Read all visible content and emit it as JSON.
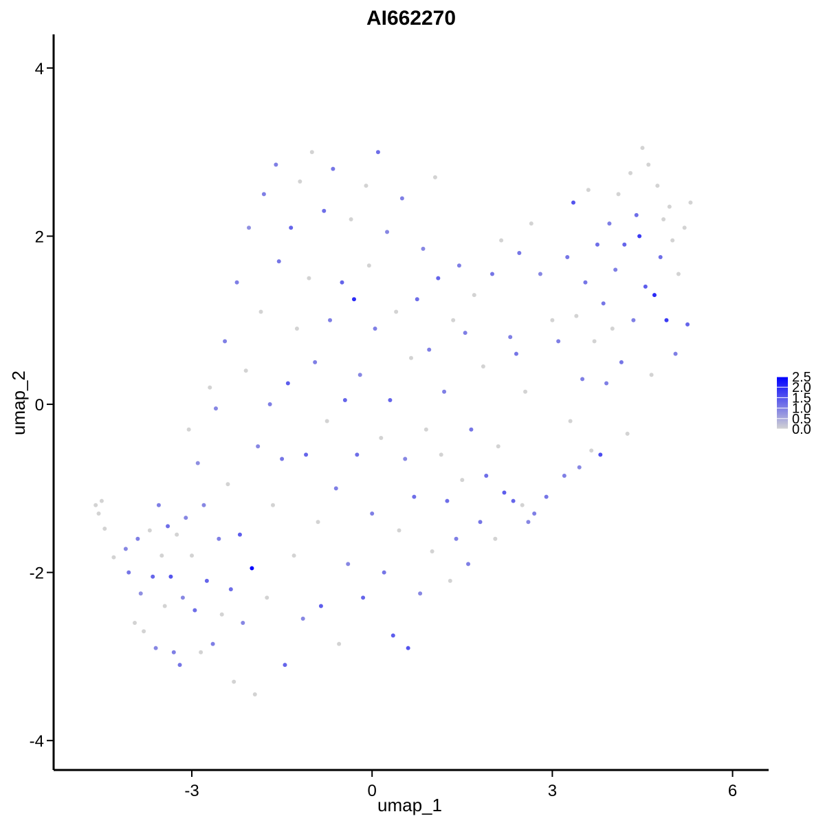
{
  "chart_data": {
    "type": "scatter",
    "title": "AI662270",
    "xlabel": "umap_1",
    "ylabel": "umap_2",
    "xlim": [
      -5.3,
      6.6
    ],
    "ylim": [
      -4.35,
      4.4
    ],
    "xticks": [
      -3,
      0,
      3,
      6
    ],
    "xtick_labels": [
      "-3",
      "0",
      "3",
      "6"
    ],
    "yticks": [
      -4,
      -2,
      0,
      2,
      4
    ],
    "ytick_labels": [
      "-4",
      "-2",
      "0",
      "2",
      "4"
    ],
    "grid": false,
    "legend_placement": "right",
    "colorbar": {
      "min": 0.0,
      "max": 2.5,
      "ticks": [
        0.0,
        0.5,
        1.0,
        1.5,
        2.0,
        2.5
      ],
      "tick_labels": [
        "0.0",
        "0.5",
        "1.0",
        "1.5",
        "2.0",
        "2.5"
      ],
      "color_low": "#d3d3d3",
      "color_high": "#0000ff"
    },
    "points": [
      {
        "x": -4.6,
        "y": -1.2,
        "v": 0.0
      },
      {
        "x": -4.55,
        "y": -1.3,
        "v": 0.0
      },
      {
        "x": -4.5,
        "y": -1.15,
        "v": 0.0
      },
      {
        "x": -4.45,
        "y": -1.48,
        "v": 0.0
      },
      {
        "x": -4.3,
        "y": -1.82,
        "v": 0.0
      },
      {
        "x": -4.1,
        "y": -1.72,
        "v": 0.9
      },
      {
        "x": -4.05,
        "y": -2.0,
        "v": 1.1
      },
      {
        "x": -3.95,
        "y": -2.6,
        "v": 0.0
      },
      {
        "x": -3.9,
        "y": -1.6,
        "v": 1.0
      },
      {
        "x": -3.85,
        "y": -2.25,
        "v": 0.8
      },
      {
        "x": -3.8,
        "y": -2.7,
        "v": 0.0
      },
      {
        "x": -3.7,
        "y": -1.5,
        "v": 0.0
      },
      {
        "x": -3.65,
        "y": -2.05,
        "v": 1.3
      },
      {
        "x": -3.6,
        "y": -2.9,
        "v": 0.9
      },
      {
        "x": -3.55,
        "y": -1.2,
        "v": 1.0
      },
      {
        "x": -3.5,
        "y": -1.8,
        "v": 0.0
      },
      {
        "x": -3.45,
        "y": -2.4,
        "v": 0.0
      },
      {
        "x": -3.4,
        "y": -1.45,
        "v": 1.2
      },
      {
        "x": -3.35,
        "y": -2.05,
        "v": 1.5
      },
      {
        "x": -3.3,
        "y": -2.95,
        "v": 1.0
      },
      {
        "x": -3.25,
        "y": -1.55,
        "v": 0.0
      },
      {
        "x": -3.2,
        "y": -3.1,
        "v": 1.1
      },
      {
        "x": -3.15,
        "y": -2.3,
        "v": 0.9
      },
      {
        "x": -3.1,
        "y": -1.35,
        "v": 0.9
      },
      {
        "x": -3.05,
        "y": -0.3,
        "v": 0.0
      },
      {
        "x": -3.0,
        "y": -1.8,
        "v": 0.0
      },
      {
        "x": -2.95,
        "y": -2.45,
        "v": 1.2
      },
      {
        "x": -2.9,
        "y": -0.7,
        "v": 0.8
      },
      {
        "x": -2.85,
        "y": -2.95,
        "v": 0.0
      },
      {
        "x": -2.8,
        "y": -1.2,
        "v": 0.9
      },
      {
        "x": -2.75,
        "y": -2.1,
        "v": 1.3
      },
      {
        "x": -2.7,
        "y": 0.2,
        "v": 0.0
      },
      {
        "x": -2.65,
        "y": -2.85,
        "v": 1.0
      },
      {
        "x": -2.6,
        "y": -0.05,
        "v": 0.9
      },
      {
        "x": -2.55,
        "y": -1.6,
        "v": 1.0
      },
      {
        "x": -2.5,
        "y": -2.5,
        "v": 0.0
      },
      {
        "x": -2.45,
        "y": 0.75,
        "v": 1.0
      },
      {
        "x": -2.4,
        "y": -0.95,
        "v": 0.0
      },
      {
        "x": -2.35,
        "y": -2.2,
        "v": 1.2
      },
      {
        "x": -2.3,
        "y": -3.3,
        "v": 0.0
      },
      {
        "x": -2.25,
        "y": 1.45,
        "v": 1.0
      },
      {
        "x": -2.2,
        "y": -1.55,
        "v": 1.4
      },
      {
        "x": -2.15,
        "y": -2.6,
        "v": 0.9
      },
      {
        "x": -2.1,
        "y": 0.4,
        "v": 0.0
      },
      {
        "x": -2.05,
        "y": 2.1,
        "v": 0.8
      },
      {
        "x": -2.0,
        "y": -1.95,
        "v": 2.5
      },
      {
        "x": -1.95,
        "y": -3.45,
        "v": 0.0
      },
      {
        "x": -1.9,
        "y": -0.5,
        "v": 0.9
      },
      {
        "x": -1.85,
        "y": 1.1,
        "v": 0.0
      },
      {
        "x": -1.8,
        "y": 2.5,
        "v": 1.0
      },
      {
        "x": -1.75,
        "y": -2.3,
        "v": 0.0
      },
      {
        "x": -1.7,
        "y": 0.0,
        "v": 1.0
      },
      {
        "x": -1.65,
        "y": -1.2,
        "v": 0.0
      },
      {
        "x": -1.6,
        "y": 2.85,
        "v": 1.0
      },
      {
        "x": -1.55,
        "y": 1.7,
        "v": 1.1
      },
      {
        "x": -1.5,
        "y": -0.65,
        "v": 1.1
      },
      {
        "x": -1.45,
        "y": -3.1,
        "v": 1.3
      },
      {
        "x": -1.4,
        "y": 0.25,
        "v": 1.4
      },
      {
        "x": -1.35,
        "y": 2.1,
        "v": 1.3
      },
      {
        "x": -1.3,
        "y": -1.8,
        "v": 0.0
      },
      {
        "x": -1.25,
        "y": 0.9,
        "v": 0.0
      },
      {
        "x": -1.2,
        "y": 2.65,
        "v": 0.0
      },
      {
        "x": -1.15,
        "y": -2.55,
        "v": 0.9
      },
      {
        "x": -1.1,
        "y": -0.6,
        "v": 1.3
      },
      {
        "x": -1.05,
        "y": 1.5,
        "v": 0.0
      },
      {
        "x": -1.0,
        "y": 3.0,
        "v": 0.0
      },
      {
        "x": -0.95,
        "y": 0.5,
        "v": 1.0
      },
      {
        "x": -0.9,
        "y": -1.4,
        "v": 0.0
      },
      {
        "x": -0.85,
        "y": -2.4,
        "v": 1.4
      },
      {
        "x": -0.8,
        "y": 2.3,
        "v": 1.2
      },
      {
        "x": -0.75,
        "y": -0.2,
        "v": 0.0
      },
      {
        "x": -0.7,
        "y": 1.0,
        "v": 1.0
      },
      {
        "x": -0.65,
        "y": 2.8,
        "v": 1.1
      },
      {
        "x": -0.6,
        "y": -1.0,
        "v": 1.0
      },
      {
        "x": -0.55,
        "y": -2.85,
        "v": 0.0
      },
      {
        "x": -0.5,
        "y": 1.45,
        "v": 1.3
      },
      {
        "x": -0.45,
        "y": 0.05,
        "v": 1.3
      },
      {
        "x": -0.4,
        "y": -1.9,
        "v": 0.9
      },
      {
        "x": -0.35,
        "y": 2.2,
        "v": 0.0
      },
      {
        "x": -0.3,
        "y": 1.25,
        "v": 2.0
      },
      {
        "x": -0.25,
        "y": -0.6,
        "v": 1.2
      },
      {
        "x": -0.2,
        "y": 0.35,
        "v": 0.9
      },
      {
        "x": -0.15,
        "y": -2.3,
        "v": 1.3
      },
      {
        "x": -0.1,
        "y": 2.6,
        "v": 0.0
      },
      {
        "x": -0.05,
        "y": 1.65,
        "v": 0.0
      },
      {
        "x": 0.0,
        "y": -1.3,
        "v": 1.0
      },
      {
        "x": 0.05,
        "y": 0.9,
        "v": 1.0
      },
      {
        "x": 0.1,
        "y": 3.0,
        "v": 1.2
      },
      {
        "x": 0.15,
        "y": -0.4,
        "v": 0.0
      },
      {
        "x": 0.2,
        "y": -2.0,
        "v": 1.1
      },
      {
        "x": 0.25,
        "y": 2.05,
        "v": 0.9
      },
      {
        "x": 0.3,
        "y": 0.05,
        "v": 1.3
      },
      {
        "x": 0.35,
        "y": -2.75,
        "v": 1.4
      },
      {
        "x": 0.4,
        "y": 1.1,
        "v": 0.0
      },
      {
        "x": 0.45,
        "y": -1.5,
        "v": 0.0
      },
      {
        "x": 0.5,
        "y": 2.45,
        "v": 1.0
      },
      {
        "x": 0.55,
        "y": -0.65,
        "v": 0.9
      },
      {
        "x": 0.6,
        "y": -2.9,
        "v": 1.5
      },
      {
        "x": 0.65,
        "y": 0.55,
        "v": 0.0
      },
      {
        "x": 0.7,
        "y": -1.1,
        "v": 1.2
      },
      {
        "x": 0.75,
        "y": 1.25,
        "v": 1.2
      },
      {
        "x": 0.8,
        "y": -2.25,
        "v": 0.9
      },
      {
        "x": 0.85,
        "y": 1.85,
        "v": 0.9
      },
      {
        "x": 0.9,
        "y": -0.3,
        "v": 0.0
      },
      {
        "x": 0.95,
        "y": 0.65,
        "v": 1.0
      },
      {
        "x": 1.0,
        "y": -1.75,
        "v": 0.0
      },
      {
        "x": 1.05,
        "y": 2.7,
        "v": 0.0
      },
      {
        "x": 1.1,
        "y": 1.5,
        "v": 1.3
      },
      {
        "x": 1.15,
        "y": -0.6,
        "v": 0.0
      },
      {
        "x": 1.2,
        "y": 0.15,
        "v": 1.0
      },
      {
        "x": 1.25,
        "y": -1.15,
        "v": 1.2
      },
      {
        "x": 1.3,
        "y": -2.1,
        "v": 0.0
      },
      {
        "x": 1.35,
        "y": 1.0,
        "v": 0.0
      },
      {
        "x": 1.4,
        "y": -1.6,
        "v": 1.0
      },
      {
        "x": 1.45,
        "y": 1.65,
        "v": 1.0
      },
      {
        "x": 1.5,
        "y": -0.9,
        "v": 0.0
      },
      {
        "x": 1.55,
        "y": 0.85,
        "v": 1.0
      },
      {
        "x": 1.6,
        "y": -1.9,
        "v": 1.0
      },
      {
        "x": 1.65,
        "y": -0.3,
        "v": 1.1
      },
      {
        "x": 1.7,
        "y": 1.3,
        "v": 0.0
      },
      {
        "x": 1.8,
        "y": -1.4,
        "v": 1.1
      },
      {
        "x": 1.85,
        "y": 0.45,
        "v": 0.0
      },
      {
        "x": 1.9,
        "y": -0.85,
        "v": 1.2
      },
      {
        "x": 2.0,
        "y": 1.55,
        "v": 1.1
      },
      {
        "x": 2.05,
        "y": -1.6,
        "v": 0.0
      },
      {
        "x": 2.1,
        "y": -0.5,
        "v": 0.0
      },
      {
        "x": 2.15,
        "y": 1.95,
        "v": 0.0
      },
      {
        "x": 2.2,
        "y": -1.05,
        "v": 1.4
      },
      {
        "x": 2.3,
        "y": 0.8,
        "v": 1.0
      },
      {
        "x": 2.35,
        "y": -1.15,
        "v": 1.3
      },
      {
        "x": 2.4,
        "y": 0.6,
        "v": 1.1
      },
      {
        "x": 2.45,
        "y": 1.8,
        "v": 1.1
      },
      {
        "x": 2.5,
        "y": -1.2,
        "v": 0.0
      },
      {
        "x": 2.55,
        "y": 0.15,
        "v": 0.0
      },
      {
        "x": 2.6,
        "y": -1.4,
        "v": 0.9
      },
      {
        "x": 2.65,
        "y": 2.15,
        "v": 0.0
      },
      {
        "x": 2.7,
        "y": -1.3,
        "v": 1.0
      },
      {
        "x": 2.8,
        "y": 1.55,
        "v": 0.9
      },
      {
        "x": 2.9,
        "y": -1.1,
        "v": 1.1
      },
      {
        "x": 3.0,
        "y": 1.0,
        "v": 0.0
      },
      {
        "x": 3.1,
        "y": 0.75,
        "v": 1.0
      },
      {
        "x": 3.2,
        "y": -0.85,
        "v": 1.0
      },
      {
        "x": 3.25,
        "y": 1.75,
        "v": 1.1
      },
      {
        "x": 3.3,
        "y": -0.2,
        "v": 0.0
      },
      {
        "x": 3.35,
        "y": 2.4,
        "v": 1.5
      },
      {
        "x": 3.4,
        "y": 1.05,
        "v": 0.0
      },
      {
        "x": 3.45,
        "y": -0.75,
        "v": 0.9
      },
      {
        "x": 3.5,
        "y": 0.3,
        "v": 1.0
      },
      {
        "x": 3.55,
        "y": 1.45,
        "v": 1.1
      },
      {
        "x": 3.6,
        "y": 2.55,
        "v": 0.0
      },
      {
        "x": 3.65,
        "y": -0.55,
        "v": 0.0
      },
      {
        "x": 3.7,
        "y": 0.75,
        "v": 0.0
      },
      {
        "x": 3.75,
        "y": 1.9,
        "v": 1.2
      },
      {
        "x": 3.8,
        "y": -0.6,
        "v": 1.6
      },
      {
        "x": 3.85,
        "y": 1.2,
        "v": 1.1
      },
      {
        "x": 3.9,
        "y": 0.25,
        "v": 1.0
      },
      {
        "x": 3.95,
        "y": 2.15,
        "v": 1.0
      },
      {
        "x": 4.0,
        "y": 0.9,
        "v": 0.0
      },
      {
        "x": 4.05,
        "y": 1.6,
        "v": 1.0
      },
      {
        "x": 4.1,
        "y": 2.5,
        "v": 0.0
      },
      {
        "x": 4.15,
        "y": 0.5,
        "v": 1.1
      },
      {
        "x": 4.2,
        "y": 1.9,
        "v": 1.3
      },
      {
        "x": 4.25,
        "y": -0.35,
        "v": 0.0
      },
      {
        "x": 4.3,
        "y": 2.75,
        "v": 0.0
      },
      {
        "x": 4.35,
        "y": 1.0,
        "v": 1.0
      },
      {
        "x": 4.4,
        "y": 2.25,
        "v": 1.2
      },
      {
        "x": 4.45,
        "y": 2.0,
        "v": 1.8
      },
      {
        "x": 4.5,
        "y": 3.05,
        "v": 0.0
      },
      {
        "x": 4.55,
        "y": 1.4,
        "v": 1.4
      },
      {
        "x": 4.6,
        "y": 2.85,
        "v": 0.0
      },
      {
        "x": 4.65,
        "y": 0.35,
        "v": 0.0
      },
      {
        "x": 4.7,
        "y": 1.3,
        "v": 2.0
      },
      {
        "x": 4.75,
        "y": 2.6,
        "v": 0.0
      },
      {
        "x": 4.8,
        "y": 1.75,
        "v": 1.2
      },
      {
        "x": 4.85,
        "y": 2.2,
        "v": 0.0
      },
      {
        "x": 4.9,
        "y": 1.0,
        "v": 1.8
      },
      {
        "x": 4.95,
        "y": 2.35,
        "v": 0.0
      },
      {
        "x": 5.0,
        "y": 1.95,
        "v": 0.0
      },
      {
        "x": 5.05,
        "y": 0.6,
        "v": 1.0
      },
      {
        "x": 5.1,
        "y": 1.55,
        "v": 0.0
      },
      {
        "x": 5.2,
        "y": 2.1,
        "v": 0.0
      },
      {
        "x": 5.25,
        "y": 0.95,
        "v": 1.3
      },
      {
        "x": 5.3,
        "y": 2.4,
        "v": 0.0
      }
    ]
  }
}
